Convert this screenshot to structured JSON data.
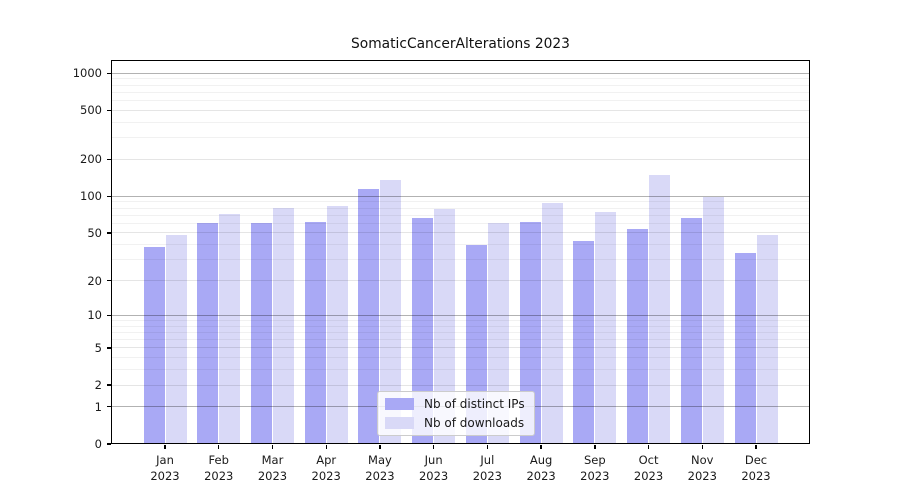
{
  "title": "SomaticCancerAlterations 2023",
  "chart_data": {
    "type": "bar",
    "title": "SomaticCancerAlterations 2023",
    "scale": "log1p",
    "grid": true,
    "legend_position": "lower center",
    "categories": [
      "Jan",
      "Feb",
      "Mar",
      "Apr",
      "May",
      "Jun",
      "Jul",
      "Aug",
      "Sep",
      "Oct",
      "Nov",
      "Dec"
    ],
    "year": "2023",
    "series": [
      {
        "name": "Nb of distinct IPs",
        "color": "#a9a9f5",
        "values": [
          38,
          60,
          61,
          62,
          115,
          66,
          40,
          62,
          43,
          54,
          66,
          34
        ]
      },
      {
        "name": "Nb of downloads",
        "color": "#d9d9f7",
        "values": [
          48,
          72,
          81,
          84,
          135,
          79,
          61,
          88,
          75,
          148,
          98,
          48
        ]
      }
    ],
    "y_major_ticks": [
      0,
      1,
      2,
      5,
      10,
      20,
      50,
      100,
      200,
      500,
      1000
    ],
    "y_minor_ticks": [
      3,
      4,
      6,
      7,
      8,
      9,
      30,
      40,
      60,
      70,
      80,
      90,
      300,
      400,
      600,
      700,
      800,
      900
    ],
    "ylim": [
      0,
      1280
    ],
    "xlabel": "",
    "ylabel": ""
  }
}
